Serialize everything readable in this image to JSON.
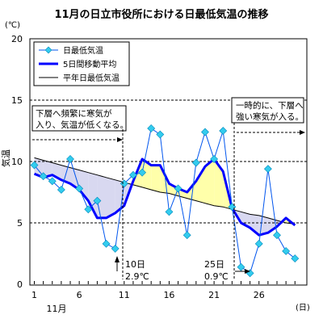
{
  "chart_data": {
    "type": "line",
    "title": "11月の日立市役所における日最低気温の推移",
    "y_unit": "(℃)",
    "ylabel": "気温",
    "x_unit": "(日)",
    "x_month_label": "11月",
    "xlim": [
      1,
      30
    ],
    "ylim": [
      0,
      20
    ],
    "x_ticks": [
      1,
      6,
      11,
      16,
      21,
      26
    ],
    "y_ticks": [
      0,
      5,
      10,
      15,
      20
    ],
    "grid": true,
    "legend_position": "top-left",
    "x": [
      1,
      2,
      3,
      4,
      5,
      6,
      7,
      8,
      9,
      10,
      11,
      12,
      13,
      14,
      15,
      16,
      17,
      18,
      19,
      20,
      21,
      22,
      23,
      24,
      25,
      26,
      27,
      28,
      29,
      30
    ],
    "series": [
      {
        "name": "日最低気温",
        "color": "#33ccee",
        "values": [
          9.7,
          8.8,
          8.4,
          7.7,
          10.2,
          7.8,
          6.1,
          6.8,
          3.3,
          2.9,
          8.2,
          8.9,
          9.1,
          12.7,
          12.2,
          5.9,
          7.8,
          4.0,
          9.9,
          12.4,
          10.2,
          12.5,
          6.3,
          1.4,
          0.9,
          3.3,
          9.4,
          4.0,
          2.7,
          2.1
        ]
      },
      {
        "name": "5日間移動平均",
        "color": "#0000ff",
        "values": [
          9.0,
          8.7,
          8.9,
          8.5,
          8.2,
          7.7,
          6.8,
          5.4,
          5.4,
          5.8,
          6.4,
          8.4,
          10.2,
          9.7,
          9.7,
          8.2,
          7.8,
          7.5,
          8.4,
          9.6,
          10.2,
          9.2,
          6.2,
          5.0,
          4.6,
          4.0,
          4.2,
          4.7,
          5.4,
          4.8
        ]
      },
      {
        "name": "平年日最低気温",
        "color": "#000000",
        "values": [
          10.3,
          10.1,
          9.9,
          9.7,
          9.5,
          9.3,
          9.1,
          8.9,
          8.7,
          8.5,
          8.3,
          8.1,
          7.9,
          7.7,
          7.5,
          7.4,
          7.2,
          7.0,
          6.8,
          6.6,
          6.4,
          6.3,
          6.1,
          5.9,
          5.7,
          5.6,
          5.4,
          5.2,
          5.0,
          4.9
        ]
      }
    ],
    "fill_colors": {
      "below_normal": "#d8d8f0",
      "above_normal": "#ffffaa"
    },
    "annotations": {
      "left_box": {
        "line1": "下層へ頻繁に寒気が",
        "line2": "入り、気温が低くなる。"
      },
      "right_box": {
        "line1": "一時的に、下層へ",
        "line2": "強い寒気が入る。"
      },
      "min1": {
        "day": "10日",
        "temp": "2.9℃",
        "x": 10,
        "y": 2.9
      },
      "min2": {
        "day": "25日",
        "temp": "0.9℃",
        "x": 25,
        "y": 0.9
      }
    }
  }
}
